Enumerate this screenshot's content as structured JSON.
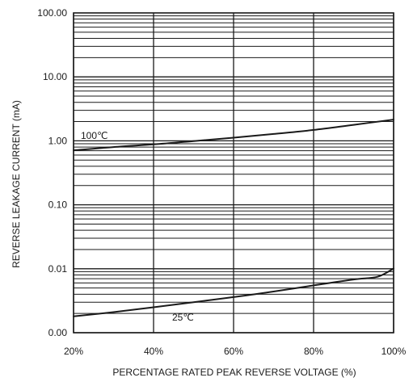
{
  "chart_data": {
    "type": "line",
    "title": "",
    "xlabel": "PERCENTAGE RATED PEAK REVERSE VOLTAGE (%)",
    "ylabel": "REVERSE LEAKAGE CURRENT (mA)",
    "x_scale": "linear",
    "y_scale": "log",
    "xlim": [
      20,
      100
    ],
    "ylim": [
      0.001,
      100
    ],
    "grid": true,
    "x_ticks": [
      {
        "value": 20,
        "label": "20%"
      },
      {
        "value": 40,
        "label": "40%"
      },
      {
        "value": 60,
        "label": "60%"
      },
      {
        "value": 80,
        "label": "80%"
      },
      {
        "value": 100,
        "label": "100%"
      }
    ],
    "y_ticks": [
      {
        "value": 0.001,
        "label": "0.00"
      },
      {
        "value": 0.01,
        "label": "0.01"
      },
      {
        "value": 0.1,
        "label": "0.10"
      },
      {
        "value": 1,
        "label": "1.00"
      },
      {
        "value": 10,
        "label": "10.00"
      },
      {
        "value": 100,
        "label": "100.00"
      }
    ],
    "series": [
      {
        "name": "100℃",
        "color": "#1a1a1a",
        "points": [
          {
            "x": 20,
            "y": 0.71
          },
          {
            "x": 30,
            "y": 0.8
          },
          {
            "x": 40,
            "y": 0.88
          },
          {
            "x": 50,
            "y": 0.99
          },
          {
            "x": 60,
            "y": 1.12
          },
          {
            "x": 70,
            "y": 1.28
          },
          {
            "x": 80,
            "y": 1.48
          },
          {
            "x": 90,
            "y": 1.78
          },
          {
            "x": 100,
            "y": 2.15
          }
        ]
      },
      {
        "name": "25℃",
        "color": "#1a1a1a",
        "points": [
          {
            "x": 20,
            "y": 0.0018
          },
          {
            "x": 30,
            "y": 0.0021
          },
          {
            "x": 40,
            "y": 0.0025
          },
          {
            "x": 50,
            "y": 0.003
          },
          {
            "x": 60,
            "y": 0.0036
          },
          {
            "x": 70,
            "y": 0.0044
          },
          {
            "x": 80,
            "y": 0.0055
          },
          {
            "x": 90,
            "y": 0.0068
          },
          {
            "x": 96,
            "y": 0.0075
          },
          {
            "x": 100,
            "y": 0.0101
          }
        ]
      }
    ]
  }
}
